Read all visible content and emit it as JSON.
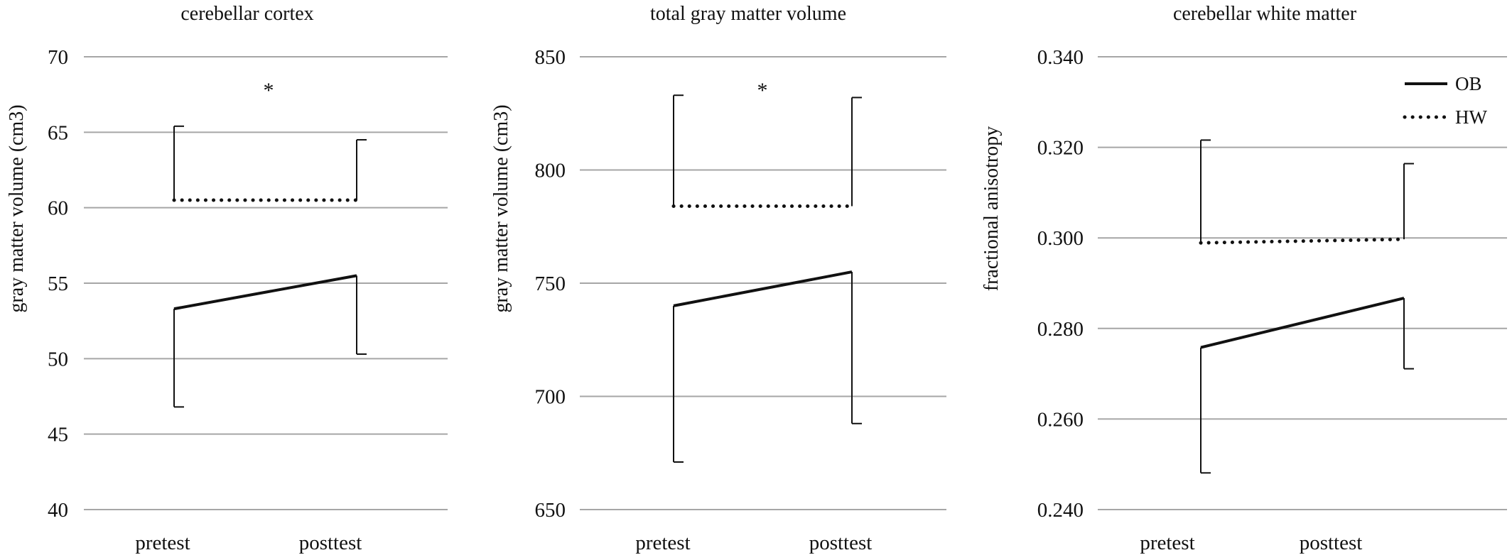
{
  "chart_data": [
    {
      "type": "line",
      "title": "cerebellar cortex",
      "ylabel": "gray matter volume (cm3)",
      "xlabel": "",
      "categories": [
        "pretest",
        "posttest"
      ],
      "ylim": [
        40,
        70
      ],
      "yticks": [
        40,
        45,
        50,
        55,
        60,
        65,
        70
      ],
      "ytick_labels": [
        "40",
        "45",
        "50",
        "55",
        "60",
        "65",
        "70"
      ],
      "grid": true,
      "series": [
        {
          "name": "OB",
          "values": [
            53.3,
            55.5
          ],
          "error_low": [
            46.8,
            50.3
          ],
          "error_high": null
        },
        {
          "name": "HW",
          "values": [
            60.5,
            60.5
          ],
          "error_low": null,
          "error_high": [
            65.4,
            64.5
          ]
        }
      ],
      "annotations": [
        "*"
      ]
    },
    {
      "type": "line",
      "title": "total gray matter volume",
      "ylabel": "gray matter volume (cm3)",
      "xlabel": "",
      "categories": [
        "pretest",
        "posttest"
      ],
      "ylim": [
        650,
        850
      ],
      "yticks": [
        650,
        700,
        750,
        800,
        850
      ],
      "ytick_labels": [
        "650",
        "700",
        "750",
        "800",
        "850"
      ],
      "grid": true,
      "series": [
        {
          "name": "OB",
          "values": [
            740,
            755
          ],
          "error_low": [
            671,
            688
          ],
          "error_high": null
        },
        {
          "name": "HW",
          "values": [
            784,
            784
          ],
          "error_low": null,
          "error_high": [
            833,
            832
          ]
        }
      ],
      "annotations": [
        "*"
      ]
    },
    {
      "type": "line",
      "title": "cerebellar white matter",
      "ylabel": "fractional anisotropy",
      "xlabel": "",
      "categories": [
        "pretest",
        "posttest"
      ],
      "ylim": [
        0.24,
        0.34
      ],
      "yticks": [
        0.24,
        0.26,
        0.28,
        0.3,
        0.32,
        0.34
      ],
      "ytick_labels": [
        "0.240",
        "0.260",
        "0.280",
        "0.300",
        "0.320",
        "0.340"
      ],
      "grid": true,
      "legend": {
        "position": "top-right",
        "entries": [
          "OB",
          "HW"
        ]
      },
      "series": [
        {
          "name": "OB",
          "values": [
            0.2758,
            0.2867
          ],
          "error_low": [
            0.2481,
            0.2711
          ],
          "error_high": null
        },
        {
          "name": "HW",
          "values": [
            0.2989,
            0.2997
          ],
          "error_low": null,
          "error_high": [
            0.3216,
            0.3164
          ]
        }
      ],
      "annotations": []
    }
  ]
}
